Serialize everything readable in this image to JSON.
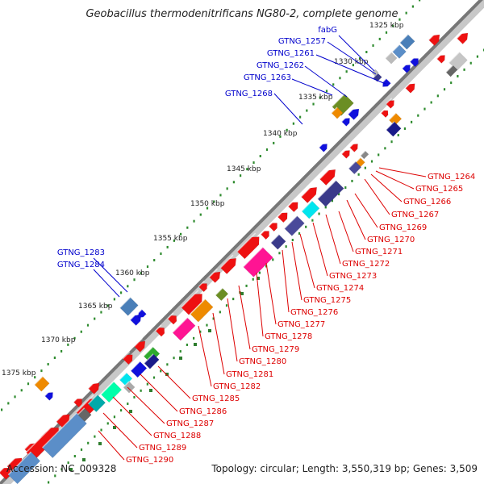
{
  "title": "Geobacillus thermodenitrificans NG80-2, complete genome",
  "accession": "Accession: NC_009328",
  "summary": "Topology: circular; Length: 3,550,319 bp; Genes: 3,509",
  "colors": {
    "backbone": "#7a7a7a",
    "forward_label": "#0000cc",
    "reverse_label": "#dd0000",
    "gc_dots": "#2e8b2e"
  },
  "ticks": [
    "1325 kbp",
    "1330 kbp",
    "1335 kbp",
    "1340 kbp",
    "1345 kbp",
    "1350 kbp",
    "1355 kbp",
    "1360 kbp",
    "1365 kbp",
    "1370 kbp",
    "1375 kbp"
  ],
  "labels_top": [
    "fabG",
    "GTNG_1257",
    "GTNG_1261",
    "GTNG_1262",
    "GTNG_1263",
    "GTNG_1268",
    "GTNG_1283",
    "GTNG_1284"
  ],
  "labels_bottom": [
    "GTNG_1264",
    "GTNG_1265",
    "GTNG_1266",
    "GTNG_1267",
    "GTNG_1269",
    "GTNG_1270",
    "GTNG_1271",
    "GTNG_1272",
    "GTNG_1273",
    "GTNG_1274",
    "GTNG_1275",
    "GTNG_1276",
    "GTNG_1277",
    "GTNG_1278",
    "GTNG_1279",
    "GTNG_1280",
    "GTNG_1281",
    "GTNG_1282",
    "GTNG_1285",
    "GTNG_1286",
    "GTNG_1287",
    "GTNG_1288",
    "GTNG_1289",
    "GTNG_1290"
  ]
}
